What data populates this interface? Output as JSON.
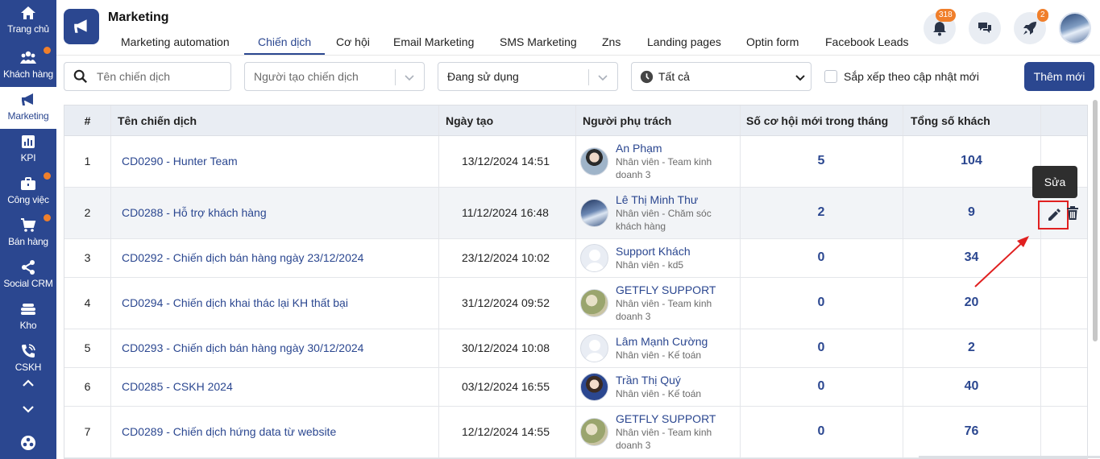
{
  "sidebar": {
    "items": [
      {
        "label": "Trang chủ",
        "icon": "home-icon",
        "dot": false
      },
      {
        "label": "Khách hàng",
        "icon": "users-icon",
        "dot": true
      },
      {
        "label": "Marketing",
        "icon": "megaphone-icon",
        "dot": false,
        "active": true
      },
      {
        "label": "KPI",
        "icon": "chart-icon",
        "dot": false
      },
      {
        "label": "Công việc",
        "icon": "briefcase-icon",
        "dot": true
      },
      {
        "label": "Bán hàng",
        "icon": "cart-icon",
        "dot": true
      },
      {
        "label": "Social CRM",
        "icon": "share-icon",
        "dot": false
      },
      {
        "label": "Kho",
        "icon": "stack-icon",
        "dot": false
      },
      {
        "label": "CSKH",
        "icon": "phone-icon",
        "dot": false
      }
    ]
  },
  "header": {
    "title": "Marketing",
    "tabs": [
      "Marketing automation",
      "Chiến dịch",
      "Cơ hội",
      "Email Marketing",
      "SMS Marketing",
      "Zns",
      "Landing pages",
      "Optin form",
      "Facebook Leads"
    ],
    "active_tab": "Chiến dịch",
    "notification_count": "318",
    "rocket_count": "2"
  },
  "filters": {
    "search_placeholder": "Tên chiến dịch",
    "creator_placeholder": "Người tạo chiến dịch",
    "status_value": "Đang sử dụng",
    "time_value": "Tất cả",
    "sort_label": "Sắp xếp theo cập nhật mới",
    "add_button": "Thêm mới"
  },
  "table": {
    "headers": {
      "idx": "#",
      "name": "Tên chiến dịch",
      "date": "Ngày tạo",
      "owner": "Người phụ trách",
      "new_opps": "Số cơ hội mới trong tháng",
      "total": "Tổng số khách"
    },
    "rows": [
      {
        "idx": "1",
        "name": "CD0290 - Hunter Team",
        "date": "13/12/2024 14:51",
        "person": "An Phạm",
        "role": "Nhân viên - Team kinh doanh 3",
        "new_opps": "5",
        "total": "104"
      },
      {
        "idx": "2",
        "name": "CD0288 - Hỗ trợ khách hàng",
        "date": "11/12/2024 16:48",
        "person": "Lê Thị Minh Thư",
        "role": "Nhân viên - Chăm sóc khách hàng",
        "new_opps": "2",
        "total": "9"
      },
      {
        "idx": "3",
        "name": "CD0292 - Chiến dịch bán hàng ngày 23/12/2024",
        "date": "23/12/2024 10:02",
        "person": "Support Khách",
        "role": "Nhân viên - kd5",
        "new_opps": "0",
        "total": "34"
      },
      {
        "idx": "4",
        "name": "CD0294 - Chiến dịch khai thác lại KH thất bại",
        "date": "31/12/2024 09:52",
        "person": "GETFLY SUPPORT",
        "role": "Nhân viên - Team kinh doanh 3",
        "new_opps": "0",
        "total": "20"
      },
      {
        "idx": "5",
        "name": "CD0293 - Chiến dịch bán hàng ngày 30/12/2024",
        "date": "30/12/2024 10:08",
        "person": "Lâm Mạnh Cường",
        "role": "Nhân viên - Kế toán",
        "new_opps": "0",
        "total": "2"
      },
      {
        "idx": "6",
        "name": "CD0285 - CSKH 2024",
        "date": "03/12/2024 16:55",
        "person": "Trần Thị Quý",
        "role": "Nhân viên - Kế toán",
        "new_opps": "0",
        "total": "40"
      },
      {
        "idx": "7",
        "name": "CD0289 - Chiến dịch hứng data từ website",
        "date": "12/12/2024 14:55",
        "person": "GETFLY SUPPORT",
        "role": "Nhân viên - Team kinh doanh 3",
        "new_opps": "0",
        "total": "76"
      }
    ]
  },
  "tooltip": "Sửa",
  "colors": {
    "primary": "#2b4790",
    "badge": "#f07f2b",
    "highlight": "#e02020"
  }
}
